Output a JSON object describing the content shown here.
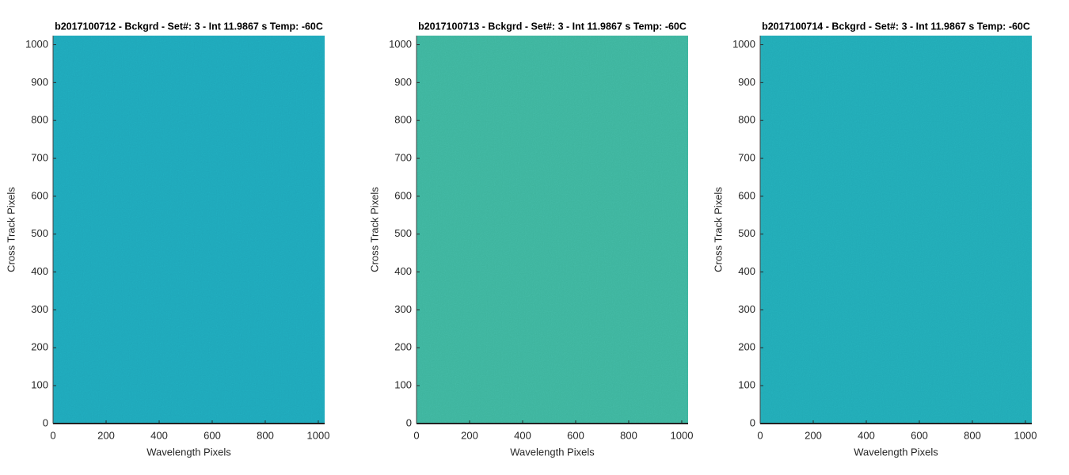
{
  "chart_data": [
    {
      "type": "heatmap",
      "title": "b2017100712 - Bckgrd - Set#: 3 - Int 11.9867 s Temp: -60C",
      "xlabel": "Wavelength Pixels",
      "ylabel": "Cross Track Pixels",
      "xlim": [
        0,
        1024
      ],
      "ylim": [
        0,
        1024
      ],
      "xticks": [
        0,
        200,
        400,
        600,
        800,
        1000
      ],
      "yticks": [
        0,
        100,
        200,
        300,
        400,
        500,
        600,
        700,
        800,
        900,
        1000
      ],
      "color": "#1ea6b9"
    },
    {
      "type": "heatmap",
      "title": "b2017100713 - Bckgrd - Set#: 3 - Int 11.9867 s Temp: -60C",
      "xlabel": "Wavelength Pixels",
      "ylabel": "Cross Track Pixels",
      "xlim": [
        0,
        1024
      ],
      "ylim": [
        0,
        1024
      ],
      "xticks": [
        0,
        200,
        400,
        600,
        800,
        1000
      ],
      "yticks": [
        0,
        100,
        200,
        300,
        400,
        500,
        600,
        700,
        800,
        900,
        1000
      ],
      "color": "#3db39c"
    },
    {
      "type": "heatmap",
      "title": "b2017100714 - Bckgrd - Set#: 3 - Int 11.9867 s Temp: -60C",
      "xlabel": "Wavelength Pixels",
      "ylabel": "Cross Track Pixels",
      "xlim": [
        0,
        1024
      ],
      "ylim": [
        0,
        1024
      ],
      "xticks": [
        0,
        200,
        400,
        600,
        800,
        1000
      ],
      "yticks": [
        0,
        100,
        200,
        300,
        400,
        500,
        600,
        700,
        800,
        900,
        1000
      ],
      "color": "#21a9b5"
    }
  ]
}
